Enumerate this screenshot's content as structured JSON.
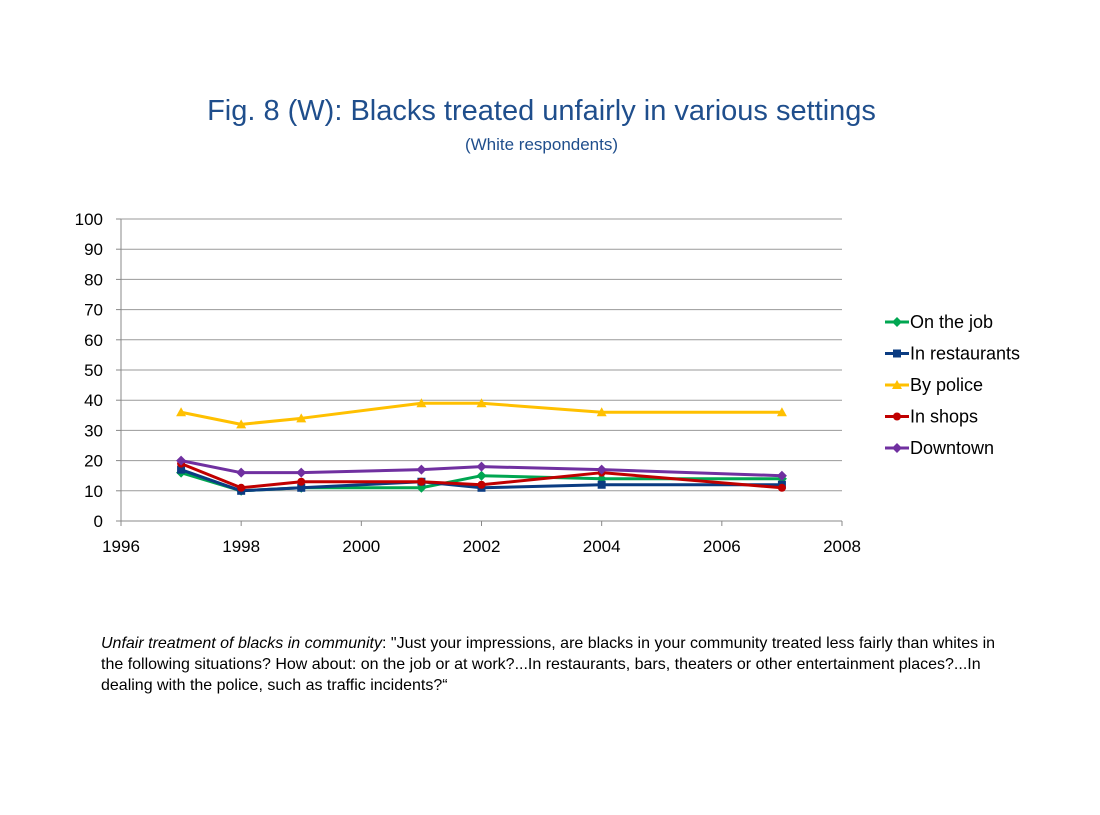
{
  "chart_data": {
    "type": "line",
    "title": "Fig. 8 (W): Blacks treated unfairly in various settings",
    "subtitle": "(White respondents)",
    "xlabel": "",
    "ylabel": "",
    "xlim": [
      1996,
      2008
    ],
    "ylim": [
      0,
      100
    ],
    "x_ticks": [
      1996,
      1998,
      2000,
      2002,
      2004,
      2006,
      2008
    ],
    "y_ticks": [
      0,
      10,
      20,
      30,
      40,
      50,
      60,
      70,
      80,
      90,
      100
    ],
    "grid": "horizontal",
    "legend_position": "right",
    "series": [
      {
        "name": "On the job",
        "color": "#00a651",
        "marker": "diamond",
        "x": [
          1997,
          1998,
          1999,
          2001,
          2002,
          2004,
          2007
        ],
        "y": [
          16,
          10,
          11,
          11,
          15,
          14,
          14
        ]
      },
      {
        "name": "In restaurants",
        "color": "#0b3c82",
        "marker": "square",
        "x": [
          1997,
          1998,
          1999,
          2001,
          2002,
          2004,
          2007
        ],
        "y": [
          17,
          10,
          11,
          13,
          11,
          12,
          12
        ]
      },
      {
        "name": "By police",
        "color": "#ffc000",
        "marker": "triangle",
        "x": [
          1997,
          1998,
          1999,
          2001,
          2002,
          2004,
          2007
        ],
        "y": [
          36,
          32,
          34,
          39,
          39,
          36,
          36
        ]
      },
      {
        "name": "In shops",
        "color": "#c00000",
        "marker": "circle",
        "x": [
          1997,
          1998,
          1999,
          2001,
          2002,
          2004,
          2007
        ],
        "y": [
          19,
          11,
          13,
          13,
          12,
          16,
          11
        ]
      },
      {
        "name": "Downtown",
        "color": "#7030a0",
        "marker": "diamond",
        "x": [
          1997,
          1998,
          1999,
          2001,
          2002,
          2004,
          2007
        ],
        "y": [
          20,
          16,
          16,
          17,
          18,
          17,
          15
        ]
      }
    ]
  },
  "note": {
    "lead": "Unfair treatment of blacks in community",
    "text": ": \"Just your impressions, are blacks in your community treated less fairly than whites in the following situations? How about: on the job or at work?...In restaurants, bars, theaters or other entertainment places?...In dealing with the police, such as traffic incidents?“"
  }
}
